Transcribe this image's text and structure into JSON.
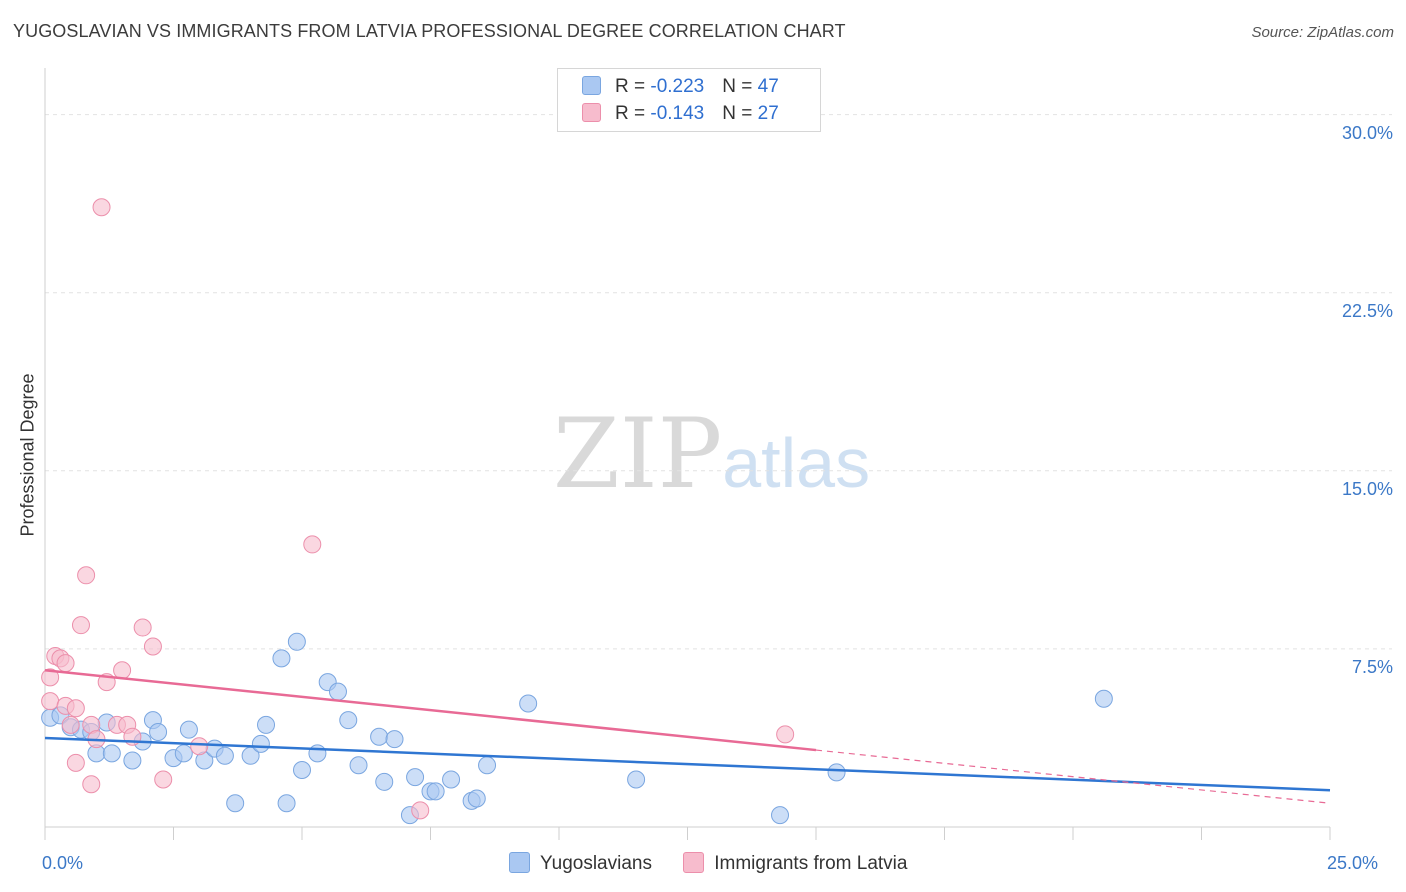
{
  "title": "YUGOSLAVIAN VS IMMIGRANTS FROM LATVIA PROFESSIONAL DEGREE CORRELATION CHART",
  "source": "Source: ZipAtlas.com",
  "watermark": {
    "zip": "ZIP",
    "atlas": "atlas"
  },
  "legend": {
    "rows": [
      {
        "r_label": "R = ",
        "r_value": "-0.223",
        "n_label": "N = ",
        "n_value": "47",
        "color": "#aac8f2",
        "border": "#7aa6e0"
      },
      {
        "r_label": "R = ",
        "r_value": "-0.143",
        "n_label": "N = ",
        "n_value": "27",
        "color": "#f7bccd",
        "border": "#ec8fab"
      }
    ]
  },
  "bottom_legend": [
    {
      "label": "Yugoslavians",
      "color": "#aac8f2",
      "border": "#7aa6e0"
    },
    {
      "label": "Immigrants from Latvia",
      "color": "#f7bccd",
      "border": "#ec8fab"
    }
  ],
  "chart_data": {
    "type": "scatter",
    "ylabel": "Professional Degree",
    "xlim": [
      0,
      25
    ],
    "ylim": [
      0,
      31.5
    ],
    "x_tick_labels": [
      {
        "value": 0,
        "label": "0.0%"
      },
      {
        "value": 25,
        "label": "25.0%"
      }
    ],
    "y_tick_labels": [
      {
        "value": 7.5,
        "label": "7.5%"
      },
      {
        "value": 15,
        "label": "15.0%"
      },
      {
        "value": 22.5,
        "label": "22.5%"
      },
      {
        "value": 30,
        "label": "30.0%"
      }
    ],
    "grid": true,
    "series": [
      {
        "name": "Yugoslavians",
        "color": "#aac8f2",
        "stroke": "#7aa6e0",
        "line_color": "#2f76d2",
        "trend": {
          "x": [
            0,
            25
          ],
          "y": [
            3.75,
            1.55
          ],
          "dashed_from": null
        },
        "points": [
          [
            0.1,
            4.6
          ],
          [
            0.3,
            4.7
          ],
          [
            0.5,
            4.2
          ],
          [
            0.7,
            4.1
          ],
          [
            0.9,
            4.0
          ],
          [
            1.0,
            3.1
          ],
          [
            1.2,
            4.4
          ],
          [
            1.3,
            3.1
          ],
          [
            1.7,
            2.8
          ],
          [
            1.9,
            3.6
          ],
          [
            2.1,
            4.5
          ],
          [
            2.2,
            4.0
          ],
          [
            2.5,
            2.9
          ],
          [
            2.7,
            3.1
          ],
          [
            2.8,
            4.1
          ],
          [
            3.1,
            2.8
          ],
          [
            3.3,
            3.3
          ],
          [
            3.5,
            3.0
          ],
          [
            3.7,
            1.0
          ],
          [
            4.0,
            3.0
          ],
          [
            4.2,
            3.5
          ],
          [
            4.3,
            4.3
          ],
          [
            4.6,
            7.1
          ],
          [
            4.7,
            1.0
          ],
          [
            4.9,
            7.8
          ],
          [
            5.0,
            2.4
          ],
          [
            5.3,
            3.1
          ],
          [
            5.5,
            6.1
          ],
          [
            5.7,
            5.7
          ],
          [
            5.9,
            4.5
          ],
          [
            6.1,
            2.6
          ],
          [
            6.5,
            3.8
          ],
          [
            6.6,
            1.9
          ],
          [
            6.8,
            3.7
          ],
          [
            7.1,
            0.5
          ],
          [
            7.2,
            2.1
          ],
          [
            7.5,
            1.5
          ],
          [
            7.6,
            1.5
          ],
          [
            7.9,
            2.0
          ],
          [
            8.3,
            1.1
          ],
          [
            8.4,
            1.2
          ],
          [
            8.6,
            2.6
          ],
          [
            9.4,
            5.2
          ],
          [
            11.5,
            2.0
          ],
          [
            14.3,
            0.5
          ],
          [
            15.4,
            2.3
          ],
          [
            20.6,
            5.4
          ]
        ]
      },
      {
        "name": "Immigrants from Latvia",
        "color": "#f7bccd",
        "stroke": "#ec8fab",
        "line_color": "#e86a95",
        "trend": {
          "x": [
            0,
            25
          ],
          "y": [
            6.6,
            1.0
          ],
          "dashed_from": 15.0
        },
        "points": [
          [
            0.1,
            6.3
          ],
          [
            0.1,
            5.3
          ],
          [
            0.2,
            7.2
          ],
          [
            0.3,
            7.1
          ],
          [
            0.4,
            6.9
          ],
          [
            0.4,
            5.1
          ],
          [
            0.5,
            4.3
          ],
          [
            0.6,
            5.0
          ],
          [
            0.6,
            2.7
          ],
          [
            0.7,
            8.5
          ],
          [
            0.8,
            10.6
          ],
          [
            0.9,
            1.8
          ],
          [
            0.9,
            4.3
          ],
          [
            1.0,
            3.7
          ],
          [
            1.1,
            26.1
          ],
          [
            1.2,
            6.1
          ],
          [
            1.4,
            4.3
          ],
          [
            1.5,
            6.6
          ],
          [
            1.6,
            4.3
          ],
          [
            1.7,
            3.8
          ],
          [
            1.9,
            8.4
          ],
          [
            2.1,
            7.6
          ],
          [
            2.3,
            2.0
          ],
          [
            3.0,
            3.4
          ],
          [
            5.2,
            11.9
          ],
          [
            7.3,
            0.7
          ],
          [
            14.4,
            3.9
          ]
        ]
      }
    ]
  }
}
